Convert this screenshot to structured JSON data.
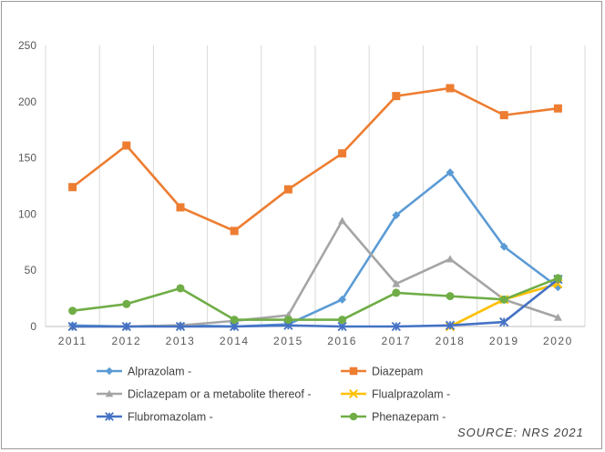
{
  "source_label": "SOURCE: NRS 2021",
  "chart_data": {
    "type": "line",
    "title": "",
    "xlabel": "",
    "ylabel": "",
    "x": [
      "2011",
      "2012",
      "2013",
      "2014",
      "2015",
      "2016",
      "2017",
      "2018",
      "2019",
      "2020"
    ],
    "ylim": [
      0,
      250
    ],
    "yticks": [
      0,
      50,
      100,
      150,
      200,
      250
    ],
    "grid": "vertical",
    "legend_position": "bottom",
    "series": [
      {
        "name": "Alprazolam -",
        "color": "#5b9bd5",
        "marker": "diamond",
        "values": [
          1,
          0,
          1,
          0,
          2,
          24,
          99,
          137,
          71,
          35
        ]
      },
      {
        "name": "Diazepam",
        "color": "#ed7d31",
        "marker": "square",
        "values": [
          124,
          161,
          106,
          85,
          122,
          154,
          205,
          212,
          188,
          194
        ]
      },
      {
        "name": "Diclazepam or a metabolite thereof  -",
        "color": "#a5a5a5",
        "marker": "triangle",
        "values": [
          0,
          0,
          1,
          5,
          10,
          94,
          38,
          60,
          24,
          8
        ]
      },
      {
        "name": "Flualprazolam -",
        "color": "#ffc000",
        "marker": "x",
        "values": [
          null,
          null,
          null,
          null,
          null,
          null,
          null,
          0,
          24,
          38
        ]
      },
      {
        "name": "Flubromazolam -",
        "color": "#4472c4",
        "marker": "star",
        "values": [
          0,
          0,
          0,
          0,
          1,
          0,
          0,
          1,
          4,
          42
        ]
      },
      {
        "name": "Phenazepam -",
        "color": "#70ad47",
        "marker": "circle",
        "values": [
          14,
          20,
          34,
          6,
          6,
          6,
          30,
          27,
          24,
          43
        ]
      }
    ]
  }
}
